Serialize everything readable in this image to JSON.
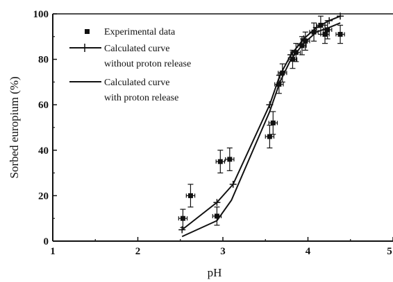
{
  "chart_data": {
    "type": "scatter",
    "xlabel": "pH",
    "ylabel": "Sorbed europium (%)",
    "xlim": [
      1,
      5
    ],
    "ylim": [
      0,
      100
    ],
    "x_ticks": [
      "1",
      "2",
      "3",
      "4",
      "5"
    ],
    "y_ticks": [
      "0",
      "20",
      "40",
      "60",
      "80",
      "100"
    ],
    "grid": false,
    "legend_position": "top-left",
    "legend": [
      {
        "label": "Experimental data",
        "marker": "square"
      },
      {
        "label": "Calculated curve",
        "label2": "without proton release",
        "marker": "line-plus"
      },
      {
        "label": "Calculated curve",
        "label2": "with proton release",
        "marker": "line"
      }
    ],
    "series": [
      {
        "kind": "points",
        "points": [
          {
            "x": 2.53,
            "y": 10,
            "xerr": 0.05,
            "yerr": 4
          },
          {
            "x": 2.62,
            "y": 20,
            "xerr": 0.05,
            "yerr": 5
          },
          {
            "x": 2.93,
            "y": 11,
            "xerr": 0.05,
            "yerr": 4
          },
          {
            "x": 2.97,
            "y": 35,
            "xerr": 0.05,
            "yerr": 5
          },
          {
            "x": 3.08,
            "y": 36,
            "xerr": 0.05,
            "yerr": 5
          },
          {
            "x": 3.55,
            "y": 46,
            "xerr": 0.05,
            "yerr": 5
          },
          {
            "x": 3.59,
            "y": 52,
            "xerr": 0.05,
            "yerr": 5
          },
          {
            "x": 3.66,
            "y": 69,
            "xerr": 0.05,
            "yerr": 4
          },
          {
            "x": 3.7,
            "y": 74,
            "xerr": 0.05,
            "yerr": 4
          },
          {
            "x": 3.82,
            "y": 80,
            "xerr": 0.05,
            "yerr": 4
          },
          {
            "x": 3.86,
            "y": 83,
            "xerr": 0.05,
            "yerr": 4
          },
          {
            "x": 3.93,
            "y": 86,
            "xerr": 0.05,
            "yerr": 4
          },
          {
            "x": 3.97,
            "y": 88,
            "xerr": 0.05,
            "yerr": 4
          },
          {
            "x": 4.07,
            "y": 92,
            "xerr": 0.05,
            "yerr": 4
          },
          {
            "x": 4.15,
            "y": 95,
            "xerr": 0.05,
            "yerr": 4
          },
          {
            "x": 4.2,
            "y": 91,
            "xerr": 0.05,
            "yerr": 4
          },
          {
            "x": 4.23,
            "y": 93,
            "xerr": 0.05,
            "yerr": 4
          },
          {
            "x": 4.38,
            "y": 91,
            "xerr": 0.05,
            "yerr": 4
          }
        ]
      },
      {
        "kind": "line-plus",
        "x": [
          2.52,
          2.93,
          3.12,
          3.55,
          3.67,
          3.8,
          3.95,
          4.1,
          4.25,
          4.38
        ],
        "y": [
          5,
          17,
          25,
          60,
          73,
          82,
          89,
          94,
          97,
          99
        ]
      },
      {
        "kind": "line",
        "x": [
          2.52,
          2.93,
          3.1,
          3.55,
          3.67,
          3.8,
          3.95,
          4.1,
          4.25,
          4.38
        ],
        "y": [
          2,
          9,
          18,
          57,
          70,
          80,
          87,
          92,
          94,
          96
        ]
      }
    ]
  }
}
